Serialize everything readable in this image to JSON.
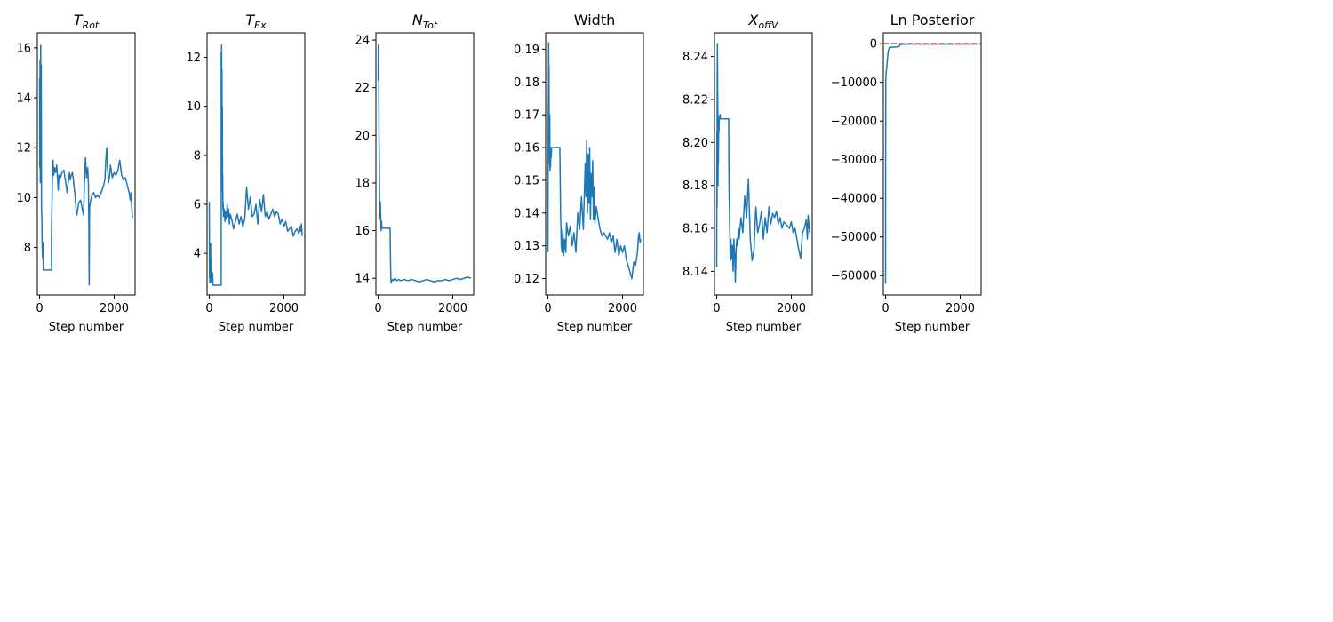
{
  "chart_data": [
    {
      "type": "line",
      "title": {
        "base": "T",
        "sub": "Rot"
      },
      "xlabel": "Step number",
      "xlim": [
        -60,
        2560
      ],
      "ylim": [
        6.1,
        16.6
      ],
      "xticks": [
        {
          "v": 0,
          "label": "0"
        },
        {
          "v": 2000,
          "label": "2000"
        }
      ],
      "yticks": [
        {
          "v": 8,
          "label": "8"
        },
        {
          "v": 10,
          "label": "10"
        },
        {
          "v": 12,
          "label": "12"
        },
        {
          "v": 14,
          "label": "14"
        },
        {
          "v": 16,
          "label": "16"
        }
      ],
      "series": [
        {
          "color": "#1f77b4",
          "x": [
            0,
            5,
            12,
            20,
            30,
            38,
            45,
            52,
            60,
            70,
            80,
            90,
            100,
            100,
            320,
            320,
            340,
            360,
            380,
            400,
            430,
            460,
            480,
            500,
            520,
            560,
            600,
            650,
            700,
            740,
            780,
            800,
            820,
            850,
            880,
            900,
            920,
            950,
            980,
            1000,
            1050,
            1100,
            1150,
            1180,
            1200,
            1230,
            1260,
            1290,
            1310,
            1320,
            1330,
            1340,
            1360,
            1400,
            1450,
            1500,
            1550,
            1600,
            1650,
            1700,
            1750,
            1780,
            1800,
            1820,
            1850,
            1880,
            1900,
            1950,
            2000,
            2050,
            2100,
            2150,
            2200,
            2250,
            2300,
            2350,
            2400,
            2430,
            2450,
            2470,
            2490
          ],
          "y": [
            14.8,
            11.2,
            15.5,
            10.6,
            16.1,
            12.3,
            15.3,
            9.6,
            9.2,
            8.1,
            7.6,
            8.2,
            7.1,
            7.1,
            7.1,
            8.5,
            10.5,
            11.5,
            10.9,
            11.2,
            11.0,
            11.3,
            10.8,
            10.3,
            10.9,
            10.8,
            11.0,
            11.1,
            10.6,
            10.2,
            10.8,
            11.0,
            10.7,
            10.9,
            11.0,
            10.8,
            10.5,
            10.1,
            9.5,
            9.3,
            9.8,
            9.9,
            9.5,
            9.3,
            10.5,
            11.6,
            10.8,
            11.2,
            10.5,
            9.0,
            6.5,
            9.6,
            9.8,
            10.1,
            10.2,
            10.0,
            10.1,
            10.0,
            10.2,
            10.4,
            10.7,
            11.6,
            12.0,
            11.2,
            10.6,
            10.9,
            11.3,
            10.8,
            11.0,
            10.9,
            11.1,
            11.5,
            10.9,
            10.7,
            10.8,
            10.5,
            10.2,
            9.9,
            10.2,
            9.6,
            9.2
          ]
        }
      ]
    },
    {
      "type": "line",
      "title": {
        "base": "T",
        "sub": "Ex"
      },
      "xlabel": "Step number",
      "xlim": [
        -60,
        2560
      ],
      "ylim": [
        2.3,
        13.0
      ],
      "xticks": [
        {
          "v": 0,
          "label": "0"
        },
        {
          "v": 2000,
          "label": "2000"
        }
      ],
      "yticks": [
        {
          "v": 4,
          "label": "4"
        },
        {
          "v": 6,
          "label": "6"
        },
        {
          "v": 8,
          "label": "8"
        },
        {
          "v": 10,
          "label": "10"
        },
        {
          "v": 12,
          "label": "12"
        }
      ],
      "series": [
        {
          "color": "#1f77b4",
          "x": [
            0,
            5,
            10,
            15,
            20,
            25,
            30,
            35,
            40,
            45,
            50,
            55,
            60,
            70,
            80,
            90,
            100,
            100,
            320,
            320,
            325,
            330,
            335,
            340,
            345,
            350,
            355,
            360,
            365,
            370,
            380,
            400,
            420,
            440,
            460,
            480,
            500,
            520,
            540,
            560,
            600,
            650,
            700,
            750,
            800,
            850,
            900,
            950,
            1000,
            1050,
            1100,
            1150,
            1200,
            1250,
            1300,
            1350,
            1400,
            1450,
            1500,
            1550,
            1600,
            1650,
            1700,
            1750,
            1800,
            1850,
            1900,
            1950,
            2000,
            2050,
            2100,
            2150,
            2200,
            2250,
            2300,
            2350,
            2400,
            2430,
            2450,
            2470,
            2490
          ],
          "y": [
            6.1,
            3.0,
            4.2,
            2.8,
            3.5,
            4.0,
            2.9,
            4.4,
            3.1,
            3.8,
            2.9,
            3.3,
            2.8,
            3.0,
            2.8,
            3.2,
            2.7,
            2.7,
            2.7,
            12.2,
            10.8,
            12.5,
            9.2,
            11.5,
            7.8,
            10.0,
            6.5,
            7.2,
            5.8,
            6.1,
            5.5,
            5.8,
            5.3,
            5.7,
            5.4,
            6.0,
            5.5,
            5.8,
            5.2,
            5.6,
            5.4,
            5.0,
            5.3,
            5.6,
            5.2,
            5.5,
            5.1,
            5.4,
            6.7,
            5.8,
            6.3,
            5.5,
            5.6,
            6.0,
            5.2,
            6.2,
            5.7,
            6.4,
            5.5,
            5.7,
            5.4,
            5.6,
            5.8,
            5.5,
            5.7,
            5.6,
            5.2,
            5.4,
            5.1,
            5.3,
            4.9,
            5.0,
            5.1,
            4.7,
            4.9,
            5.0,
            4.8,
            5.1,
            4.9,
            5.2,
            4.7
          ]
        }
      ]
    },
    {
      "type": "line",
      "title": {
        "base": "N",
        "sub": "Tot"
      },
      "xlabel": "Step number",
      "xlim": [
        -60,
        2560
      ],
      "ylim": [
        13.3,
        24.3
      ],
      "xticks": [
        {
          "v": 0,
          "label": "0"
        },
        {
          "v": 2000,
          "label": "2000"
        }
      ],
      "yticks": [
        {
          "v": 14,
          "label": "14"
        },
        {
          "v": 16,
          "label": "16"
        },
        {
          "v": 18,
          "label": "18"
        },
        {
          "v": 20,
          "label": "20"
        },
        {
          "v": 22,
          "label": "22"
        },
        {
          "v": 24,
          "label": "24"
        }
      ],
      "series": [
        {
          "color": "#1f77b4",
          "x": [
            0,
            5,
            10,
            15,
            20,
            25,
            30,
            35,
            40,
            50,
            60,
            70,
            80,
            90,
            100,
            320,
            330,
            340,
            350,
            360,
            380,
            400,
            450,
            500,
            550,
            600,
            700,
            800,
            900,
            1000,
            1100,
            1200,
            1300,
            1400,
            1500,
            1600,
            1700,
            1800,
            1900,
            2000,
            2100,
            2200,
            2300,
            2400,
            2490
          ],
          "y": [
            22.3,
            23.8,
            22.5,
            23.7,
            21.2,
            19.6,
            19.2,
            18.0,
            17.0,
            16.5,
            17.2,
            16.6,
            16.0,
            16.4,
            16.1,
            16.1,
            15.0,
            14.0,
            13.8,
            13.9,
            13.95,
            13.9,
            14.0,
            13.9,
            13.95,
            13.9,
            13.95,
            13.9,
            13.95,
            13.9,
            13.85,
            13.9,
            13.95,
            13.9,
            13.85,
            13.9,
            13.9,
            13.95,
            13.9,
            13.95,
            14.0,
            13.95,
            14.0,
            14.05,
            14.0
          ]
        }
      ]
    },
    {
      "type": "line",
      "title": {
        "base": "Width",
        "sub": ""
      },
      "xlabel": "Step number",
      "xlim": [
        -60,
        2560
      ],
      "ylim": [
        0.115,
        0.195
      ],
      "xticks": [
        {
          "v": 0,
          "label": "0"
        },
        {
          "v": 2000,
          "label": "2000"
        }
      ],
      "yticks": [
        {
          "v": 0.12,
          "label": "0.12"
        },
        {
          "v": 0.13,
          "label": "0.13"
        },
        {
          "v": 0.14,
          "label": "0.14"
        },
        {
          "v": 0.15,
          "label": "0.15"
        },
        {
          "v": 0.16,
          "label": "0.16"
        },
        {
          "v": 0.17,
          "label": "0.17"
        },
        {
          "v": 0.18,
          "label": "0.18"
        },
        {
          "v": 0.19,
          "label": "0.19"
        }
      ],
      "series": [
        {
          "color": "#1f77b4",
          "x": [
            0,
            5,
            10,
            15,
            20,
            25,
            30,
            35,
            40,
            45,
            50,
            55,
            60,
            70,
            80,
            90,
            100,
            320,
            330,
            340,
            360,
            380,
            400,
            420,
            450,
            480,
            500,
            550,
            600,
            650,
            700,
            750,
            800,
            850,
            900,
            950,
            1000,
            1020,
            1040,
            1060,
            1080,
            1100,
            1120,
            1140,
            1160,
            1180,
            1200,
            1220,
            1240,
            1260,
            1300,
            1350,
            1400,
            1450,
            1500,
            1550,
            1600,
            1650,
            1700,
            1750,
            1800,
            1850,
            1900,
            1950,
            2000,
            2050,
            2100,
            2150,
            2200,
            2250,
            2300,
            2350,
            2400,
            2430,
            2450,
            2470,
            2490
          ],
          "y": [
            0.128,
            0.145,
            0.17,
            0.175,
            0.192,
            0.18,
            0.185,
            0.16,
            0.165,
            0.155,
            0.17,
            0.153,
            0.16,
            0.154,
            0.16,
            0.157,
            0.16,
            0.16,
            0.15,
            0.14,
            0.13,
            0.128,
            0.135,
            0.127,
            0.132,
            0.128,
            0.137,
            0.133,
            0.136,
            0.13,
            0.134,
            0.128,
            0.14,
            0.135,
            0.145,
            0.135,
            0.155,
            0.145,
            0.162,
            0.14,
            0.158,
            0.143,
            0.16,
            0.138,
            0.152,
            0.145,
            0.156,
            0.138,
            0.148,
            0.137,
            0.142,
            0.138,
            0.135,
            0.133,
            0.134,
            0.133,
            0.132,
            0.134,
            0.131,
            0.133,
            0.128,
            0.132,
            0.127,
            0.13,
            0.128,
            0.13,
            0.126,
            0.124,
            0.122,
            0.12,
            0.125,
            0.124,
            0.128,
            0.133,
            0.134,
            0.131,
            0.132
          ]
        }
      ]
    },
    {
      "type": "line",
      "title": {
        "base": "X",
        "sub": "offV"
      },
      "xlabel": "Step number",
      "xlim": [
        -60,
        2560
      ],
      "ylim": [
        8.129,
        8.251
      ],
      "xticks": [
        {
          "v": 0,
          "label": "0"
        },
        {
          "v": 2000,
          "label": "2000"
        }
      ],
      "yticks": [
        {
          "v": 8.14,
          "label": "8.14"
        },
        {
          "v": 8.16,
          "label": "8.16"
        },
        {
          "v": 8.18,
          "label": "8.18"
        },
        {
          "v": 8.2,
          "label": "8.20"
        },
        {
          "v": 8.22,
          "label": "8.22"
        },
        {
          "v": 8.24,
          "label": "8.24"
        }
      ],
      "series": [
        {
          "color": "#1f77b4",
          "x": [
            0,
            5,
            10,
            15,
            20,
            25,
            30,
            35,
            40,
            45,
            50,
            55,
            60,
            70,
            80,
            90,
            100,
            320,
            330,
            340,
            350,
            360,
            370,
            380,
            400,
            420,
            440,
            460,
            480,
            500,
            520,
            540,
            560,
            580,
            600,
            650,
            700,
            750,
            800,
            850,
            900,
            950,
            1000,
            1050,
            1100,
            1150,
            1200,
            1250,
            1300,
            1350,
            1400,
            1450,
            1500,
            1550,
            1600,
            1650,
            1700,
            1750,
            1800,
            1850,
            1900,
            1950,
            2000,
            2050,
            2100,
            2150,
            2200,
            2250,
            2300,
            2350,
            2400,
            2430,
            2450,
            2470,
            2490
          ],
          "y": [
            8.142,
            8.205,
            8.17,
            8.235,
            8.246,
            8.225,
            8.215,
            8.18,
            8.21,
            8.19,
            8.2,
            8.21,
            8.205,
            8.212,
            8.211,
            8.213,
            8.211,
            8.211,
            8.18,
            8.17,
            8.16,
            8.15,
            8.145,
            8.155,
            8.146,
            8.152,
            8.14,
            8.155,
            8.148,
            8.135,
            8.15,
            8.155,
            8.152,
            8.16,
            8.155,
            8.165,
            8.158,
            8.175,
            8.165,
            8.183,
            8.155,
            8.145,
            8.15,
            8.17,
            8.158,
            8.162,
            8.168,
            8.155,
            8.165,
            8.158,
            8.17,
            8.162,
            8.167,
            8.165,
            8.168,
            8.162,
            8.165,
            8.16,
            8.163,
            8.162,
            8.161,
            8.16,
            8.163,
            8.158,
            8.16,
            8.155,
            8.15,
            8.146,
            8.158,
            8.16,
            8.164,
            8.155,
            8.166,
            8.162,
            8.158
          ]
        }
      ]
    },
    {
      "type": "line",
      "title": {
        "base": "Ln Posterior",
        "sub": ""
      },
      "xlabel": "Step number",
      "xlim": [
        -60,
        2560
      ],
      "ylim": [
        -65000,
        2800
      ],
      "xticks": [
        {
          "v": 0,
          "label": "0"
        },
        {
          "v": 2000,
          "label": "2000"
        }
      ],
      "yticks": [
        {
          "v": 0,
          "label": "0"
        },
        {
          "v": -10000,
          "label": "−10000"
        },
        {
          "v": -20000,
          "label": "−20000"
        },
        {
          "v": -30000,
          "label": "−30000"
        },
        {
          "v": -40000,
          "label": "−40000"
        },
        {
          "v": -50000,
          "label": "−50000"
        },
        {
          "v": -60000,
          "label": "−60000"
        }
      ],
      "series": [
        {
          "color": "#1f77b4",
          "x": [
            0,
            2,
            5,
            10,
            20,
            30,
            40,
            50,
            70,
            100,
            150,
            200,
            250,
            300,
            350,
            400,
            450,
            500,
            600,
            800,
            1000,
            1500,
            2000,
            2500
          ],
          "y": [
            -62000,
            -30000,
            -10000,
            -8000,
            -7000,
            -6500,
            -5000,
            -4000,
            -2000,
            -1000,
            -900,
            -900,
            -850,
            -800,
            -800,
            -200,
            -150,
            -100,
            -100,
            -100,
            -100,
            -100,
            -100,
            -100
          ]
        }
      ],
      "reference_line": {
        "y": 0,
        "color": "#d62728",
        "style": "dashed"
      }
    }
  ]
}
